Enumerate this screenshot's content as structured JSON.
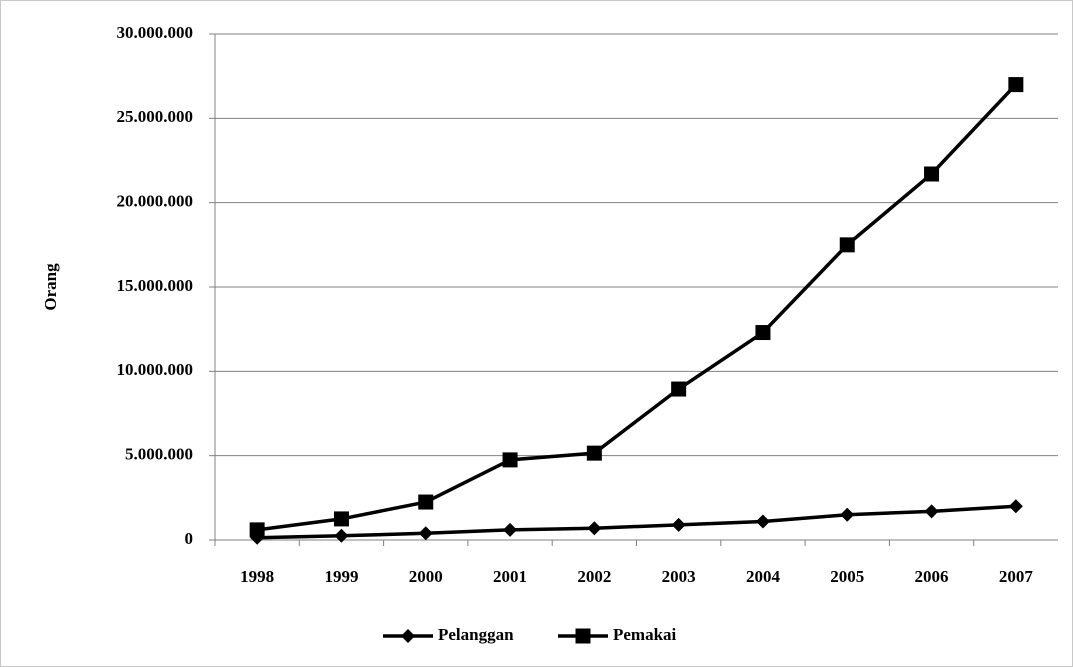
{
  "chart_data": {
    "type": "line",
    "y_label": "Orang",
    "categories": [
      "1998",
      "1999",
      "2000",
      "2001",
      "2002",
      "2003",
      "2004",
      "2005",
      "2006",
      "2007"
    ],
    "series": [
      {
        "name": "Pelanggan",
        "color": "#000000",
        "marker": "diamond",
        "values": [
          130000,
          250000,
          400000,
          600000,
          700000,
          900000,
          1100000,
          1500000,
          1700000,
          2000000
        ]
      },
      {
        "name": "Pemakai",
        "color": "#000000",
        "marker": "square",
        "values": [
          600000,
          1250000,
          2250000,
          4750000,
          5150000,
          8950000,
          12300000,
          17500000,
          21700000,
          27000000
        ]
      }
    ],
    "ylim": [
      0,
      30000000
    ],
    "yticks": [
      0,
      {
        "value": 5000000,
        "label": "5.000.000"
      },
      {
        "value": 10000000,
        "label": "10.000.000"
      },
      {
        "value": 15000000,
        "label": "15.000.000"
      },
      {
        "value": 20000000,
        "label": "20.000.000"
      },
      {
        "value": 25000000,
        "label": "25.000.000"
      },
      {
        "value": 30000000,
        "label": "30.000.000"
      }
    ],
    "grid": true,
    "legend": "bottom"
  }
}
